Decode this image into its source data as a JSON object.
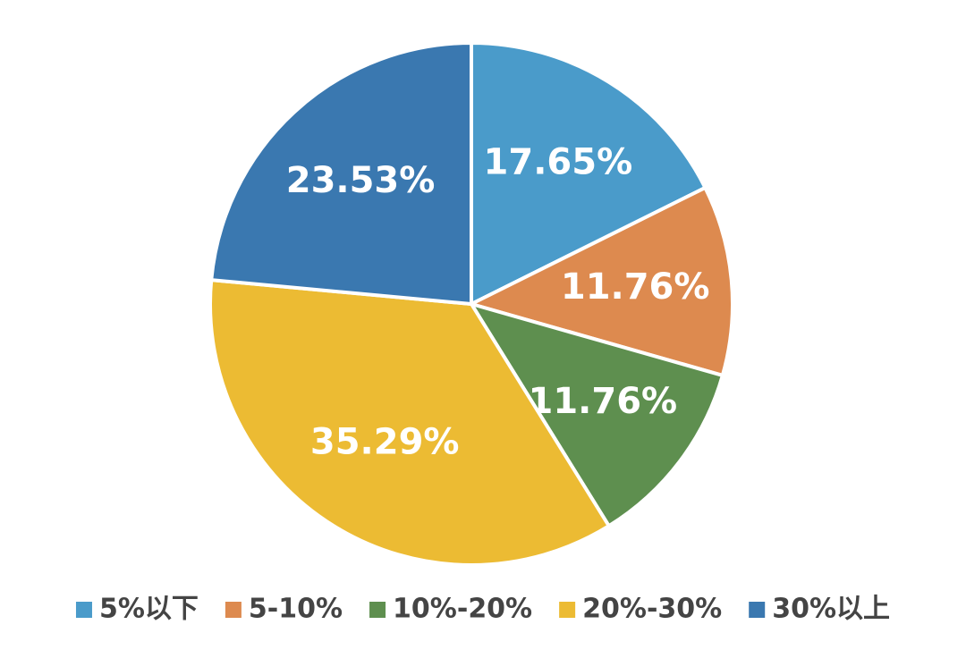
{
  "chart_data": {
    "type": "pie",
    "categories": [
      "5%以下",
      "5-10%",
      "10%-20%",
      "20%-30%",
      "30%以上"
    ],
    "values": [
      17.65,
      11.76,
      11.76,
      35.29,
      23.53
    ],
    "value_labels": [
      "17.65%",
      "11.76%",
      "11.76%",
      "35.29%",
      "23.53%"
    ],
    "colors": [
      "#4a9bca",
      "#dd8a4f",
      "#5e8f4f",
      "#ecbb33",
      "#3a78b0"
    ],
    "legend": "bottom"
  }
}
